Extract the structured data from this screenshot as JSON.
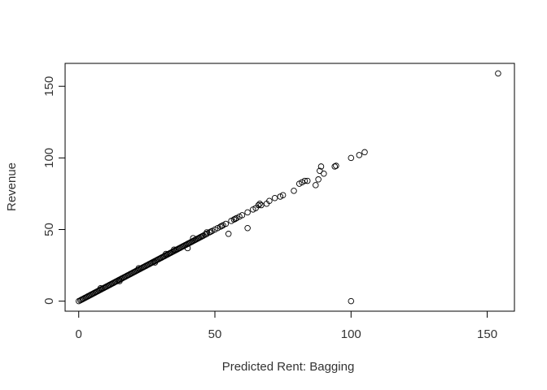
{
  "chart_data": {
    "type": "scatter",
    "title": "",
    "xlabel": "Predicted  Rent: Bagging",
    "ylabel": "Revenue",
    "xlim": [
      -5,
      160
    ],
    "ylim": [
      -7,
      166
    ],
    "xticks": [
      0,
      50,
      100,
      150
    ],
    "yticks": [
      0,
      50,
      100,
      150
    ],
    "grid": false,
    "legend": "none",
    "marker": "open-circle",
    "color": "#000000",
    "x": [
      0,
      0.6,
      1,
      1.4,
      1.8,
      2.2,
      2.6,
      3,
      3.4,
      3.8,
      4.2,
      4.6,
      5,
      5.4,
      5.8,
      6.2,
      6.6,
      7,
      7.4,
      7.8,
      8.2,
      8.6,
      9,
      9.4,
      9.8,
      10.2,
      10.6,
      11,
      11.4,
      11.8,
      12.2,
      12.6,
      13,
      13.4,
      13.8,
      14.2,
      14.6,
      15,
      15.4,
      15.8,
      16.2,
      16.6,
      17,
      17.4,
      17.8,
      18.2,
      18.6,
      19,
      19.4,
      19.8,
      20.2,
      20.6,
      21,
      21.4,
      21.8,
      22.2,
      22.6,
      23,
      23.4,
      23.8,
      24.2,
      24.6,
      25,
      25.4,
      25.8,
      26.2,
      26.6,
      27,
      27.4,
      27.8,
      28.2,
      28.6,
      29,
      29.4,
      29.8,
      30.2,
      30.6,
      31,
      31.4,
      31.8,
      32.2,
      32.6,
      33,
      33.4,
      33.8,
      34.2,
      34.6,
      35,
      35.4,
      35.8,
      36.2,
      36.6,
      37,
      37.4,
      37.8,
      38.2,
      38.6,
      39,
      39.4,
      39.8,
      40.2,
      40.6,
      41,
      41.4,
      41.8,
      42.2,
      42.6,
      43,
      43.4,
      43.8,
      44.2,
      44.6,
      45,
      45.4,
      45.8,
      46.5,
      47,
      48,
      48.5,
      49,
      50,
      51,
      52,
      52.5,
      53,
      54,
      56,
      57,
      57.5,
      58,
      59,
      60,
      62,
      64,
      65,
      66,
      66.5,
      67,
      69,
      70,
      72,
      74,
      75,
      79,
      81,
      82,
      83,
      84,
      87,
      88,
      88.5,
      89,
      90,
      94,
      94.5,
      100,
      100,
      103,
      105,
      154,
      8,
      15,
      22,
      28,
      35,
      42,
      47,
      55,
      62,
      40,
      32
    ],
    "y": [
      0,
      0.6,
      1,
      1.4,
      1.8,
      2.2,
      2.6,
      3,
      3.4,
      3.8,
      4.2,
      4.6,
      5,
      5.4,
      5.8,
      6.2,
      6.6,
      7,
      7.4,
      7.8,
      8.2,
      8.6,
      9,
      9.4,
      9.8,
      10.2,
      10.6,
      11,
      11.4,
      11.8,
      12.2,
      12.6,
      13,
      13.4,
      13.8,
      14.2,
      14.6,
      15,
      15.4,
      15.8,
      16.2,
      16.6,
      17,
      17.4,
      17.8,
      18.2,
      18.6,
      19,
      19.4,
      19.8,
      20.2,
      20.6,
      21,
      21.4,
      21.8,
      22.2,
      22.6,
      23,
      23.4,
      23.8,
      24.2,
      24.6,
      25,
      25.4,
      25.8,
      26.2,
      26.6,
      27,
      27.4,
      27.8,
      28.2,
      28.6,
      29,
      29.4,
      29.8,
      30.2,
      30.6,
      31,
      31.4,
      31.8,
      32.2,
      32.6,
      33,
      33.4,
      33.8,
      34.2,
      34.6,
      35,
      35.4,
      35.8,
      36.2,
      36.6,
      37,
      37.4,
      37.8,
      38.2,
      38.6,
      39,
      39.4,
      39.8,
      40.2,
      40.6,
      41,
      41.4,
      41.8,
      42.2,
      42.6,
      43,
      43.4,
      43.8,
      44.2,
      44.6,
      45,
      45.4,
      45.8,
      46.5,
      47,
      48,
      48.5,
      49,
      50,
      51,
      52,
      52.5,
      53,
      54,
      56,
      57,
      57.5,
      58,
      59,
      60,
      62,
      64,
      65,
      67,
      68,
      67,
      68,
      70,
      72,
      73,
      74,
      77,
      82,
      83,
      84,
      84,
      81,
      85,
      91,
      94,
      89,
      94,
      94.5,
      0,
      100,
      102,
      104,
      159,
      9,
      14,
      23,
      27,
      36,
      44,
      48,
      47,
      51,
      37,
      33
    ]
  }
}
